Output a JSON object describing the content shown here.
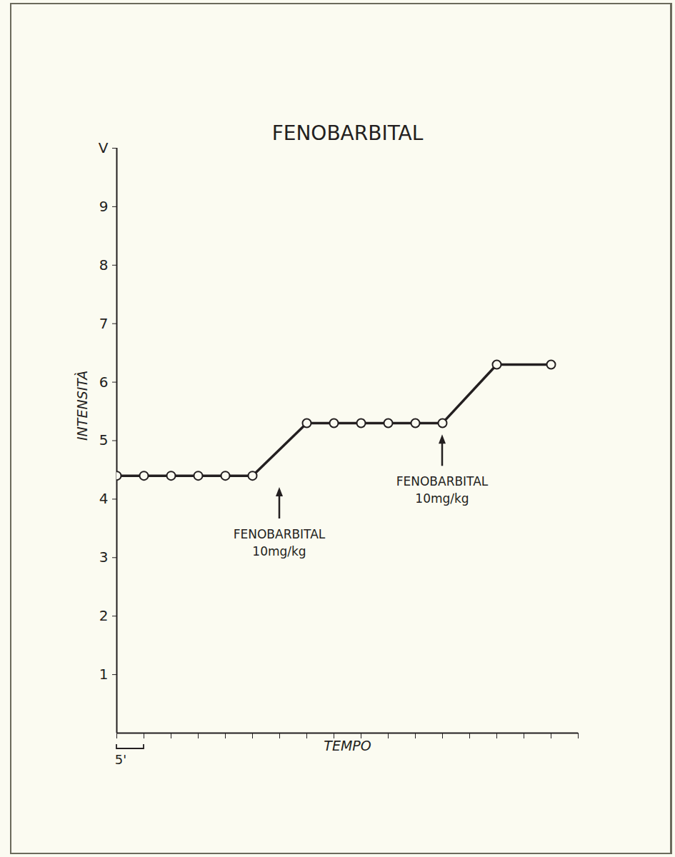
{
  "chart_data": {
    "type": "line",
    "title": "FENOBARBITAL",
    "y_label": "INTENSITÀ",
    "x_label": "TEMPO",
    "x": [
      0,
      5,
      10,
      15,
      20,
      25,
      35,
      40,
      45,
      50,
      55,
      60,
      70,
      80
    ],
    "values": [
      4.4,
      4.4,
      4.4,
      4.4,
      4.4,
      4.4,
      5.3,
      5.3,
      5.3,
      5.3,
      5.3,
      5.3,
      6.3,
      6.3
    ],
    "color": "#231f20",
    "marker": "circle",
    "line_style": "solid",
    "xlim": [
      0,
      85
    ],
    "xticks": [
      0,
      5,
      10,
      15,
      20,
      25,
      30,
      35,
      40,
      45,
      50,
      55,
      60,
      65,
      70,
      75,
      80,
      85
    ],
    "ylim": [
      0,
      10
    ],
    "yticks": [
      1,
      2,
      3,
      4,
      5,
      6,
      7,
      8,
      9,
      {
        "value": 10,
        "label": "V"
      }
    ],
    "tick_labels": "y",
    "grid": false,
    "annotations": [
      {
        "text": [
          "FENOBARBITAL",
          "10mg/kg"
        ],
        "x": 30,
        "y": 4.2
      },
      {
        "text": [
          "FENOBARBITAL",
          "10mg/kg"
        ],
        "x": 60,
        "y": 5.1
      }
    ],
    "scale_bar": {
      "label": "5'",
      "x": [
        0,
        5
      ]
    }
  }
}
